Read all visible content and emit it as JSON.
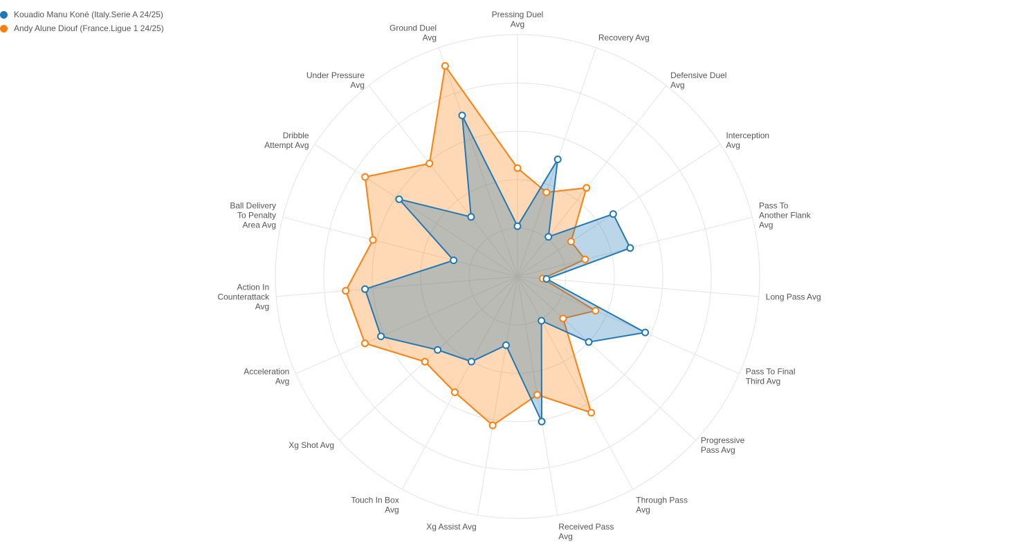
{
  "chart_data": {
    "type": "radar",
    "title": "",
    "legend_position": "top-left",
    "grid": true,
    "range": [
      0,
      1
    ],
    "axes": [
      [
        "Pressing Duel",
        "Avg"
      ],
      [
        "Recovery Avg"
      ],
      [
        "Defensive Duel",
        "Avg"
      ],
      [
        "Interception",
        "Avg"
      ],
      [
        "Pass To",
        "Another Flank",
        "Avg"
      ],
      [
        "Long Pass Avg"
      ],
      [
        "Pass To Final",
        "Third Avg"
      ],
      [
        "Progressive",
        "Pass Avg"
      ],
      [
        "Through Pass",
        "Avg"
      ],
      [
        "Received Pass",
        "Avg"
      ],
      [
        "Xg Assist Avg"
      ],
      [
        "Touch In Box",
        "Avg"
      ],
      [
        "Xg Shot Avg"
      ],
      [
        "Acceleration",
        "Avg"
      ],
      [
        "Action In",
        "Counterattack",
        "Avg"
      ],
      [
        "Ball Delivery",
        "To Penalty",
        "Area Avg"
      ],
      [
        "Dribble",
        "Attempt Avg"
      ],
      [
        "Under Pressure",
        "Avg"
      ],
      [
        "Ground Duel",
        "Avg"
      ]
    ],
    "series": [
      {
        "name": "Kouadio Manu Koné (Italy.Serie A 24/25)",
        "color": "#1f77b4",
        "values": [
          0.26,
          0.64,
          0.26,
          0.59,
          0.6,
          0.15,
          0.72,
          0.5,
          0.26,
          0.76,
          0.36,
          0.5,
          0.56,
          0.77,
          0.79,
          0.34,
          0.73,
          0.39,
          0.88
        ]
      },
      {
        "name": "Andy Alune Diouf (France.Ligue 1 24/25)",
        "color": "#ff7f0e",
        "values": [
          0.56,
          0.46,
          0.58,
          0.33,
          0.36,
          0.13,
          0.44,
          0.32,
          0.8,
          0.62,
          0.78,
          0.68,
          0.65,
          0.86,
          0.89,
          0.77,
          0.94,
          0.74,
          1.15
        ]
      }
    ]
  }
}
